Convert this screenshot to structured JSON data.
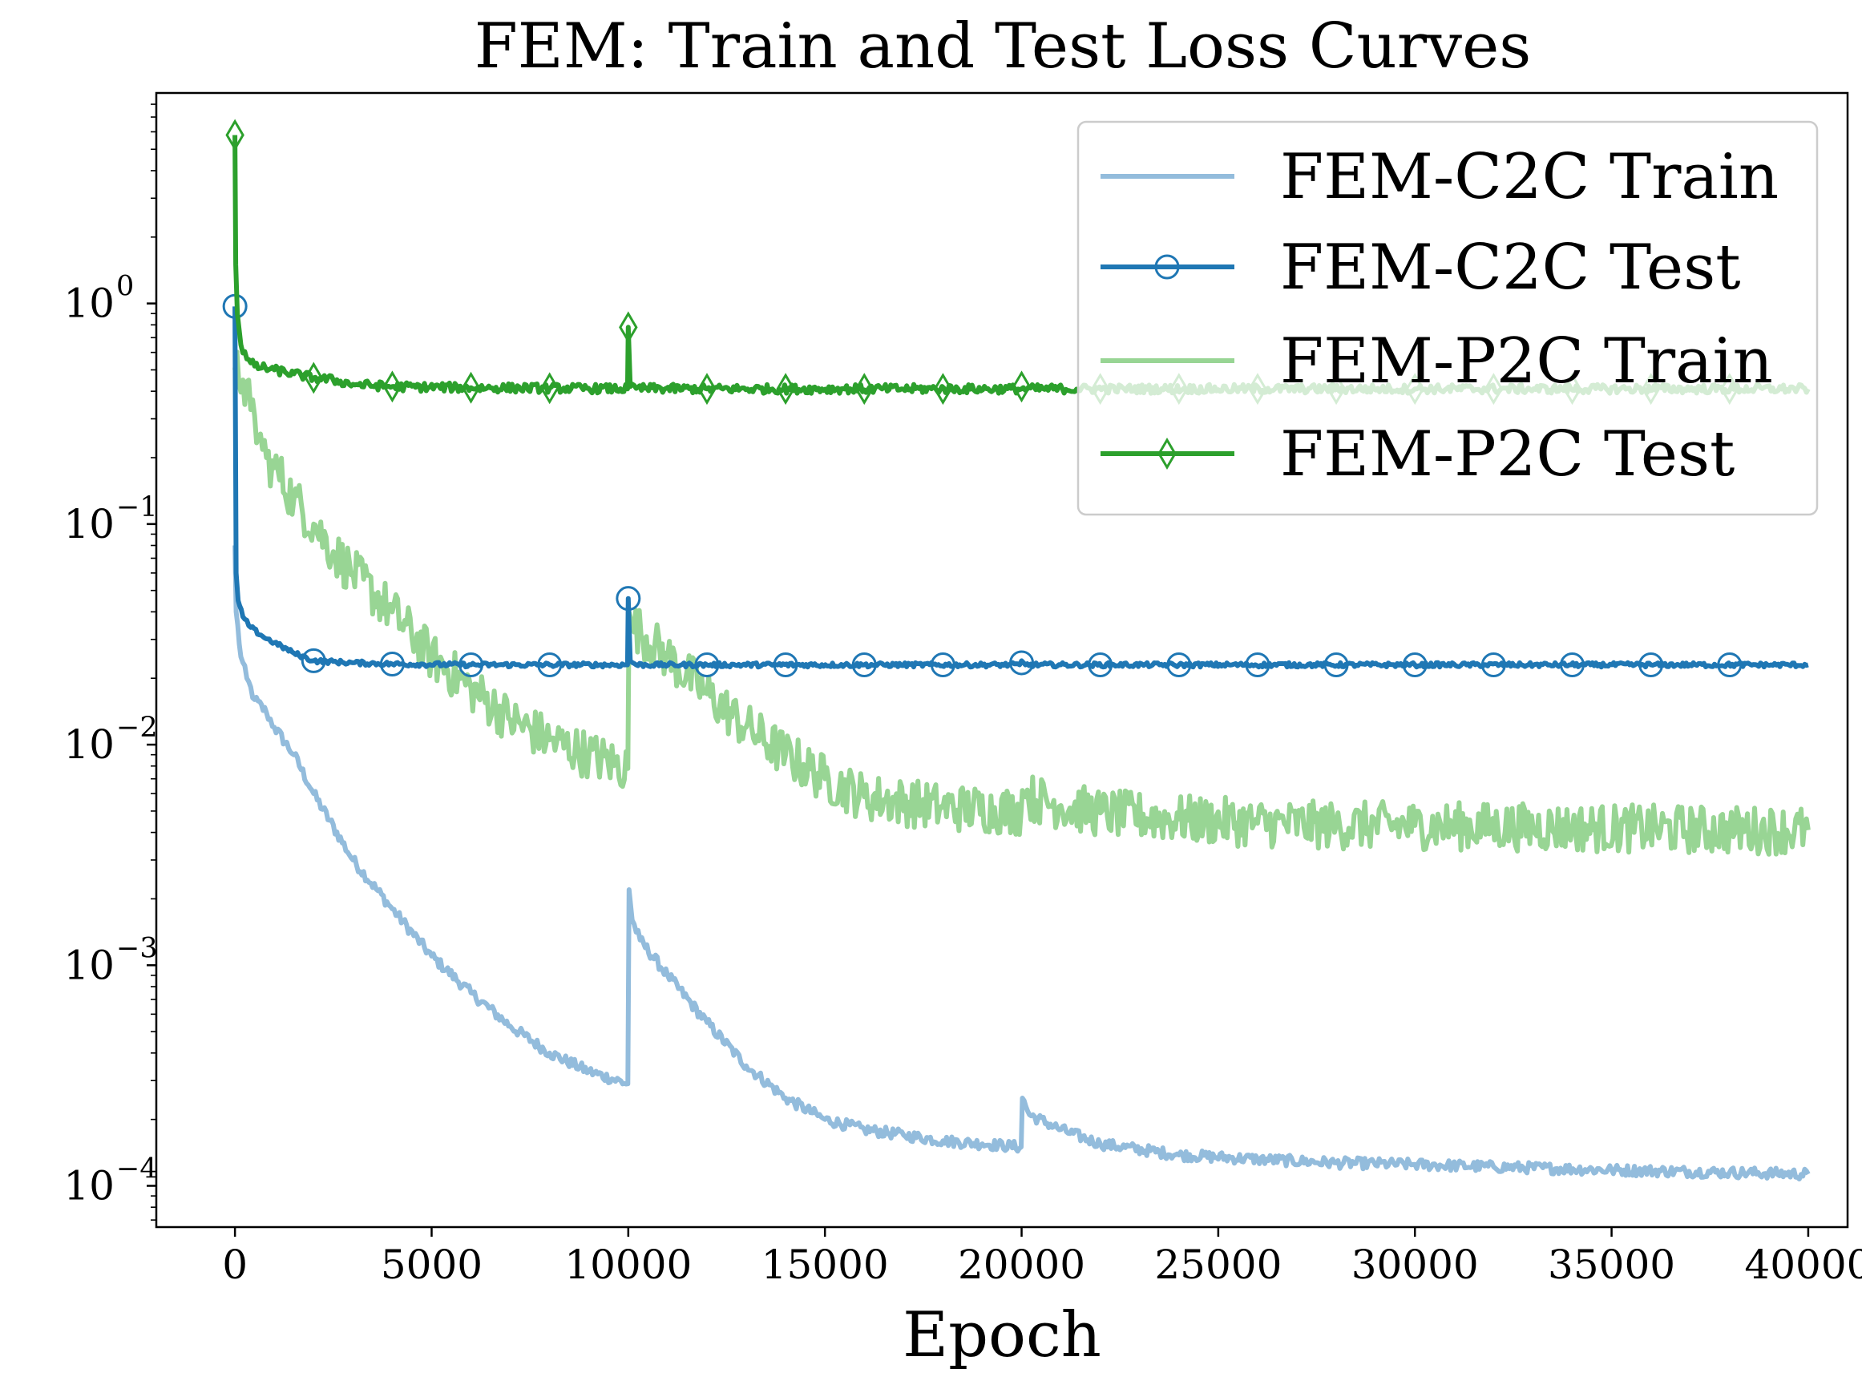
{
  "chart_data": {
    "type": "line",
    "title": "FEM: Train and Test Loss Curves",
    "xlabel": "Epoch",
    "ylabel": "",
    "xlim": [
      -2000,
      41000
    ],
    "ylim": [
      6.5e-05,
      9.0
    ],
    "yscale": "log",
    "grid": false,
    "legend_position": "top-right",
    "x_ticks": [
      0,
      5000,
      10000,
      15000,
      20000,
      25000,
      30000,
      35000,
      40000
    ],
    "x_tick_labels": [
      "0",
      "5000",
      "10000",
      "15000",
      "20000",
      "25000",
      "30000",
      "35000",
      "40000"
    ],
    "y_ticks": [
      {
        "value": 1,
        "base": "10",
        "exp": "0"
      },
      {
        "value": 0.1,
        "base": "10",
        "exp": "−1"
      },
      {
        "value": 0.01,
        "base": "10",
        "exp": "−2"
      },
      {
        "value": 0.001,
        "base": "10",
        "exp": "−3"
      },
      {
        "value": 0.0001,
        "base": "10",
        "exp": "−4"
      }
    ],
    "series": [
      {
        "name": "FEM-C2C Train",
        "color": "#93bcdc",
        "marker": "none",
        "noise": 0.05,
        "x": [
          0,
          30,
          150,
          300,
          500,
          800,
          1000,
          1500,
          2000,
          3000,
          4000,
          5000,
          6000,
          7000,
          8000,
          9000,
          9990,
          10020,
          10100,
          10300,
          11000,
          12000,
          13000,
          14000,
          15000,
          16000,
          17000,
          18000,
          19000,
          19990,
          20020,
          20200,
          21000,
          22000,
          24000,
          26000,
          28000,
          30000,
          32000,
          35000,
          38000,
          40000
        ],
        "y": [
          0.08,
          0.04,
          0.025,
          0.02,
          0.016,
          0.014,
          0.012,
          0.009,
          0.006,
          0.003,
          0.0018,
          0.0011,
          0.00075,
          0.00053,
          0.0004,
          0.00033,
          0.00029,
          0.0022,
          0.0016,
          0.0013,
          0.0009,
          0.00055,
          0.00035,
          0.00025,
          0.0002,
          0.00018,
          0.00017,
          0.00016,
          0.000155,
          0.00015,
          0.00025,
          0.00021,
          0.00018,
          0.000155,
          0.000138,
          0.000132,
          0.000127,
          0.000125,
          0.000122,
          0.000118,
          0.000115,
          0.000113
        ]
      },
      {
        "name": "FEM-C2C Test",
        "color": "#1f77b4",
        "marker": "circle",
        "noise": 0.02,
        "x": [
          0,
          30,
          80,
          200,
          400,
          700,
          1000,
          1500,
          2000,
          3000,
          4000,
          6000,
          8000,
          9980,
          10000,
          10050,
          10200,
          12000,
          16000,
          19950,
          20000,
          20100,
          24000,
          30000,
          36000,
          40000
        ],
        "y": [
          0.97,
          0.06,
          0.045,
          0.038,
          0.034,
          0.031,
          0.029,
          0.026,
          0.024,
          0.0235,
          0.0232,
          0.023,
          0.023,
          0.023,
          0.046,
          0.024,
          0.023,
          0.023,
          0.023,
          0.023,
          0.024,
          0.023,
          0.023,
          0.023,
          0.023,
          0.023
        ],
        "markers_x": [
          0,
          2000,
          4000,
          6000,
          8000,
          10000,
          12000,
          14000,
          16000,
          18000,
          20000,
          22000,
          24000,
          26000,
          28000,
          30000,
          32000,
          34000,
          36000,
          38000
        ],
        "markers_y": [
          0.97,
          0.024,
          0.0232,
          0.023,
          0.023,
          0.046,
          0.023,
          0.023,
          0.023,
          0.023,
          0.0235,
          0.023,
          0.023,
          0.023,
          0.023,
          0.023,
          0.023,
          0.023,
          0.023,
          0.023
        ]
      },
      {
        "name": "FEM-P2C Train",
        "color": "#98d594",
        "marker": "none",
        "noise": 0.22,
        "x": [
          0,
          200,
          400,
          600,
          800,
          1000,
          1500,
          2000,
          2500,
          3000,
          4000,
          5000,
          6000,
          7000,
          8000,
          9000,
          9990,
          10020,
          10100,
          11000,
          12000,
          13000,
          14000,
          15000,
          16000,
          18000,
          19990,
          20020,
          20100,
          21000,
          22000,
          24000,
          26000,
          28000,
          30000,
          34000,
          38000,
          40000
        ],
        "y": [
          0.5,
          0.45,
          0.33,
          0.25,
          0.2,
          0.18,
          0.13,
          0.1,
          0.075,
          0.06,
          0.04,
          0.025,
          0.018,
          0.013,
          0.0105,
          0.009,
          0.0078,
          0.04,
          0.035,
          0.025,
          0.017,
          0.012,
          0.009,
          0.007,
          0.0058,
          0.0052,
          0.005,
          0.0062,
          0.0058,
          0.0053,
          0.0049,
          0.0046,
          0.0044,
          0.0043,
          0.0043,
          0.0042,
          0.0041,
          0.0041
        ]
      },
      {
        "name": "FEM-P2C Test",
        "color": "#2ca02c",
        "marker": "diamond",
        "noise": 0.04,
        "x": [
          0,
          20,
          60,
          150,
          300,
          500,
          1000,
          1500,
          2000,
          2500,
          3000,
          4000,
          6000,
          8000,
          9980,
          10000,
          10050,
          10200,
          12000,
          20000,
          30000,
          40000
        ],
        "y": [
          5.8,
          1.5,
          0.9,
          0.65,
          0.56,
          0.52,
          0.5,
          0.48,
          0.46,
          0.45,
          0.43,
          0.42,
          0.415,
          0.413,
          0.41,
          0.78,
          0.42,
          0.412,
          0.41,
          0.41,
          0.41,
          0.41
        ],
        "markers_x": [
          0,
          2000,
          4000,
          6000,
          8000,
          10000,
          12000,
          14000,
          16000,
          18000,
          20000,
          22000,
          24000,
          26000,
          28000,
          30000,
          32000,
          34000,
          36000,
          38000
        ],
        "markers_y": [
          5.8,
          0.46,
          0.42,
          0.415,
          0.413,
          0.78,
          0.41,
          0.41,
          0.41,
          0.41,
          0.42,
          0.41,
          0.41,
          0.41,
          0.41,
          0.41,
          0.41,
          0.41,
          0.41,
          0.41
        ]
      }
    ]
  }
}
